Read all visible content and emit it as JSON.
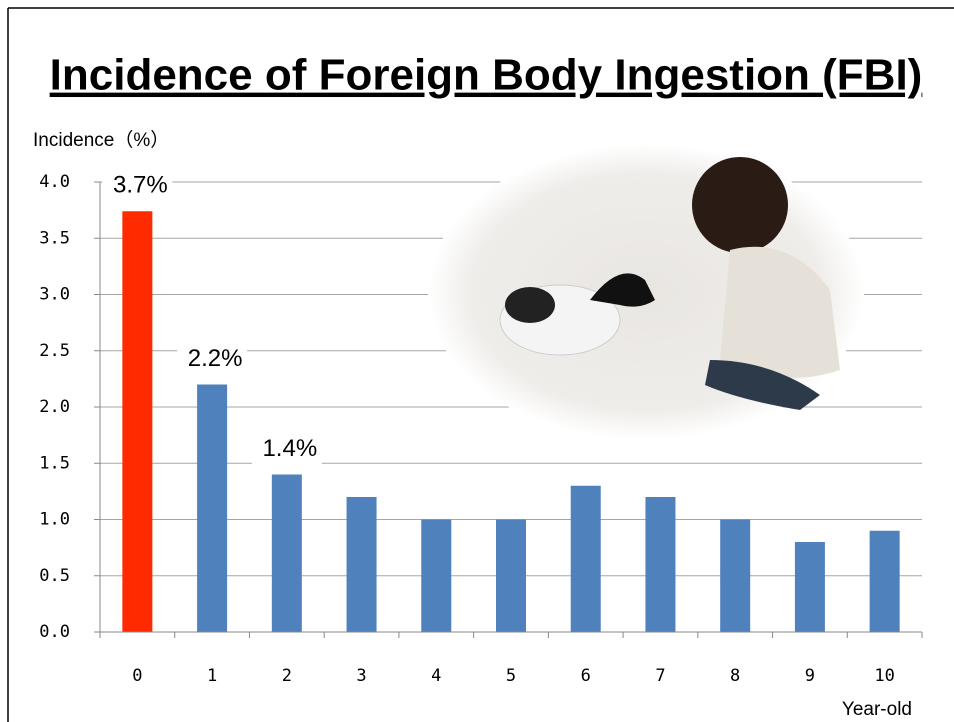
{
  "chart_data": {
    "type": "bar",
    "title": "Incidence of Foreign Body Ingestion (FBI)",
    "y_label": "Incidence（%）",
    "x_label": "Year-old",
    "categories": [
      "0",
      "1",
      "2",
      "3",
      "4",
      "5",
      "6",
      "7",
      "8",
      "9",
      "10"
    ],
    "values": [
      3.74,
      2.2,
      1.4,
      1.2,
      1.0,
      1.0,
      1.3,
      1.2,
      1.0,
      0.8,
      0.9
    ],
    "value_labels": [
      "3.7%",
      "2.2%",
      "1.4%",
      null,
      null,
      null,
      null,
      null,
      null,
      null,
      null
    ],
    "colors": [
      "#ff2a00",
      "#4f81bd",
      "#4f81bd",
      "#4f81bd",
      "#4f81bd",
      "#4f81bd",
      "#4f81bd",
      "#4f81bd",
      "#4f81bd",
      "#4f81bd",
      "#4f81bd"
    ],
    "ylim": [
      0,
      4
    ],
    "yticks": [
      {
        "value": 0,
        "label": "0.0"
      },
      0.5,
      {
        "value": 1,
        "label": "1.0"
      },
      1.5,
      {
        "value": 2,
        "label": "2.0"
      },
      2.5,
      {
        "value": 3,
        "label": "3.0"
      },
      3.5,
      {
        "value": 4,
        "label": "4.0"
      }
    ],
    "grid": true
  }
}
